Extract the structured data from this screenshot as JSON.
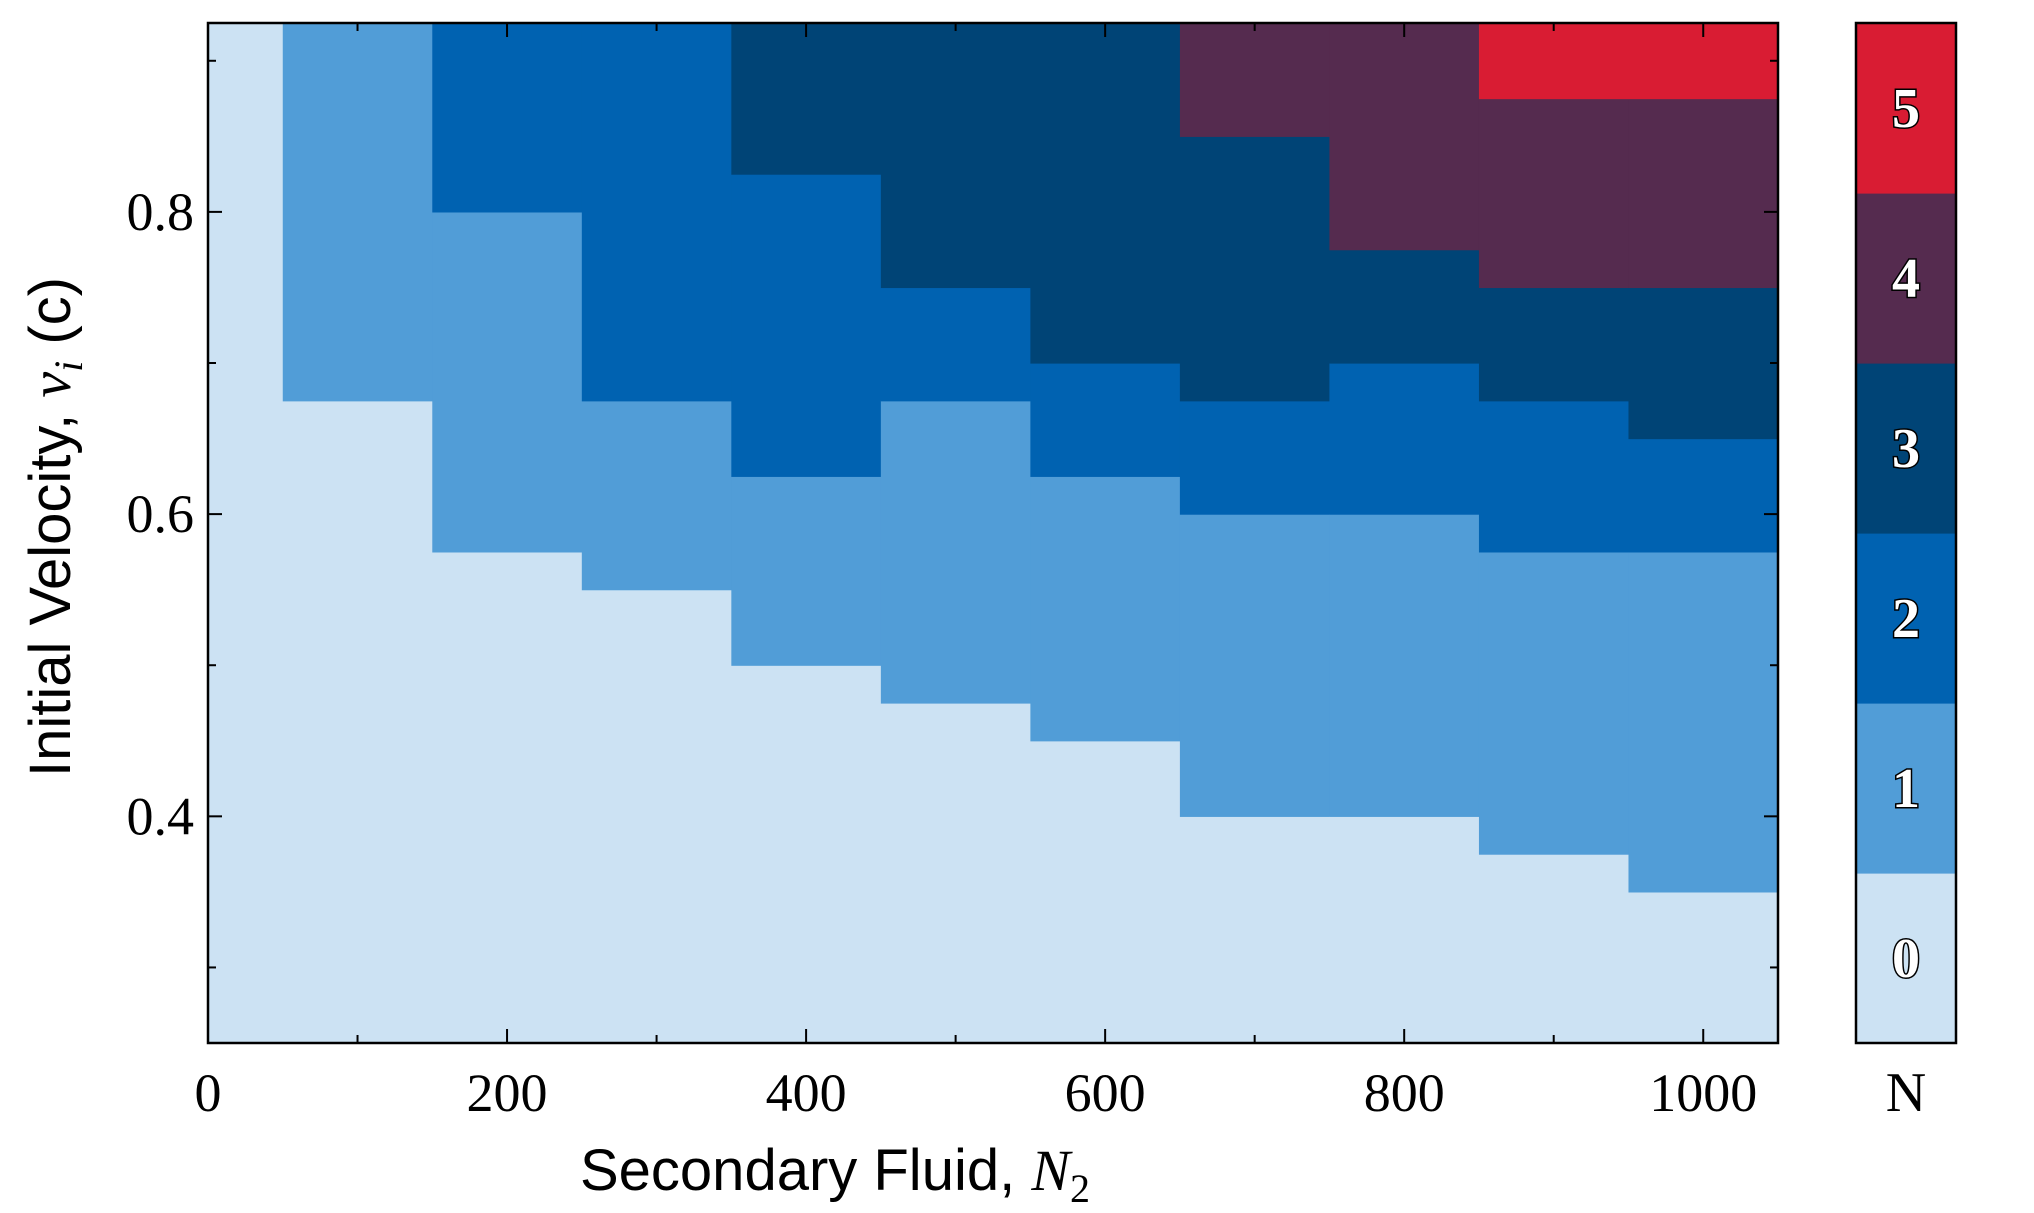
{
  "chart_data": {
    "type": "heatmap",
    "xlabel": "Secondary Fluid, ",
    "xlabel_var": "N",
    "xlabel_sub": "2",
    "ylabel": "Initial Velocity, ",
    "ylabel_var": "v",
    "ylabel_sub": "i",
    "ylabel_unit": " (c)",
    "x_range": [
      0,
      1050
    ],
    "y_range": [
      0.25,
      0.925
    ],
    "x_ticks": [
      0,
      200,
      400,
      600,
      800,
      1000
    ],
    "x_tick_labels": [
      "0",
      "200",
      "400",
      "600",
      "800",
      "1000"
    ],
    "x_minor_ticks": [
      100,
      300,
      500,
      700,
      900
    ],
    "y_ticks": [
      0.4,
      0.6,
      0.8
    ],
    "y_tick_labels": [
      "0.4",
      "0.6",
      "0.8"
    ],
    "y_minor_ticks": [
      0.3,
      0.5,
      0.7,
      0.9
    ],
    "columns": [
      {
        "x0": 0,
        "x1": 50,
        "boundaries": []
      },
      {
        "x0": 50,
        "x1": 150,
        "boundaries": [
          0.675
        ]
      },
      {
        "x0": 150,
        "x1": 250,
        "boundaries": [
          0.575,
          0.8
        ]
      },
      {
        "x0": 250,
        "x1": 350,
        "boundaries": [
          0.55,
          0.675
        ]
      },
      {
        "x0": 350,
        "x1": 450,
        "boundaries": [
          0.5,
          0.625,
          0.825
        ]
      },
      {
        "x0": 450,
        "x1": 550,
        "boundaries": [
          0.475,
          0.675,
          0.75
        ]
      },
      {
        "x0": 550,
        "x1": 650,
        "boundaries": [
          0.45,
          0.625,
          0.7
        ]
      },
      {
        "x0": 650,
        "x1": 750,
        "boundaries": [
          0.4,
          0.6,
          0.675,
          0.85
        ]
      },
      {
        "x0": 750,
        "x1": 850,
        "boundaries": [
          0.4,
          0.6,
          0.7,
          0.775
        ]
      },
      {
        "x0": 850,
        "x1": 950,
        "boundaries": [
          0.375,
          0.575,
          0.675,
          0.75,
          0.875
        ]
      },
      {
        "x0": 950,
        "x1": 1050,
        "boundaries": [
          0.35,
          0.575,
          0.65,
          0.75,
          0.875
        ]
      }
    ],
    "colorbar": {
      "label": "N",
      "levels": [
        "0",
        "1",
        "2",
        "3",
        "4",
        "5"
      ],
      "colors": [
        "#cce2f3",
        "#519dd7",
        "#0062b1",
        "#004476",
        "#552b4f",
        "#d91c33"
      ]
    },
    "grid": false,
    "legend": "colorbar-right"
  }
}
